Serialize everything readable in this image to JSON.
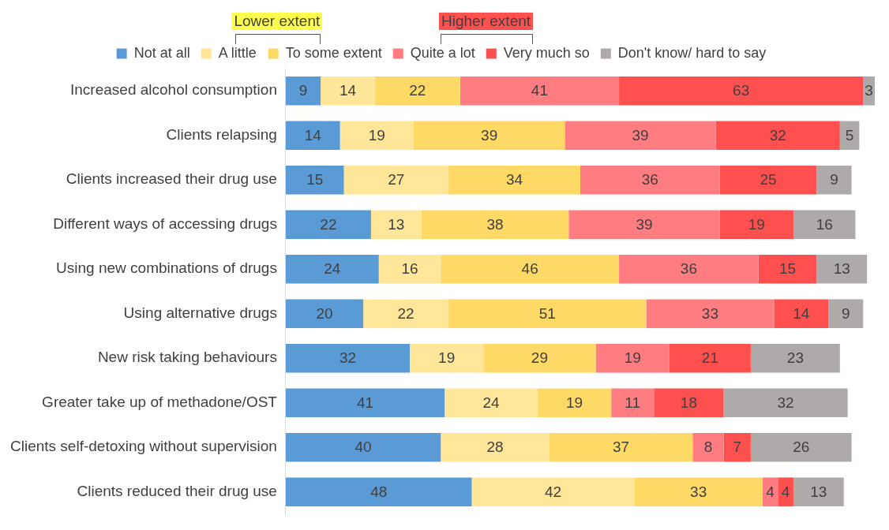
{
  "chart_data": {
    "type": "bar",
    "orientation": "horizontal",
    "stacked": true,
    "data_labels": true,
    "legend": "top",
    "categories": [
      "Increased alcohol consumption",
      "Clients relapsing",
      "Clients increased their drug use",
      "Different ways of accessing drugs",
      "Using new combinations of drugs",
      "Using alternative drugs",
      "New risk taking behaviours",
      "Greater take up of methadone/OST",
      "Clients self-detoxing without supervision",
      "Clients reduced their drug use"
    ],
    "series": [
      {
        "name": "Not at all",
        "color": "#5b9bd5",
        "values": [
          9,
          14,
          15,
          22,
          24,
          20,
          32,
          41,
          40,
          48
        ]
      },
      {
        "name": "A little",
        "color": "#ffe699",
        "values": [
          14,
          19,
          27,
          13,
          16,
          22,
          19,
          24,
          28,
          42
        ]
      },
      {
        "name": "To some extent",
        "color": "#ffd966",
        "values": [
          22,
          39,
          34,
          38,
          46,
          51,
          29,
          19,
          37,
          33
        ]
      },
      {
        "name": "Quite a lot",
        "color": "#ff7c80",
        "values": [
          41,
          39,
          36,
          39,
          36,
          33,
          19,
          11,
          8,
          4
        ]
      },
      {
        "name": "Very much so",
        "color": "#ff5050",
        "values": [
          63,
          32,
          25,
          19,
          15,
          14,
          21,
          18,
          7,
          4
        ]
      },
      {
        "name": "Don't know/ hard to say",
        "color": "#aeaaaa",
        "values": [
          3,
          5,
          9,
          16,
          13,
          9,
          23,
          32,
          26,
          13
        ]
      }
    ],
    "xlim": [
      0,
      152
    ],
    "annotations": [
      "Lower extent",
      "Higher extent"
    ]
  }
}
